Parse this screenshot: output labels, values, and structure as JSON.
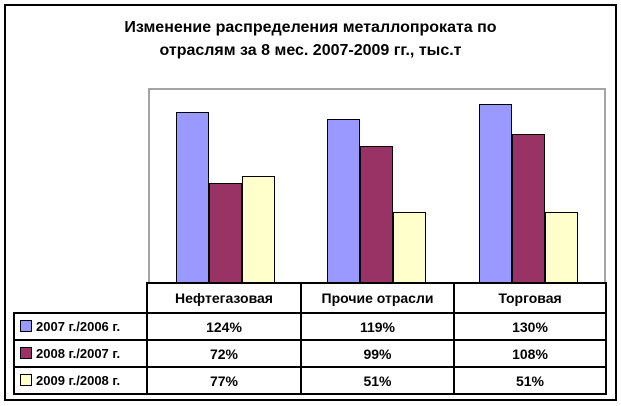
{
  "window": {
    "background": "#ffffff",
    "frame_border_color": "#000000"
  },
  "chart_data": {
    "type": "bar",
    "title": "Изменение распределения металлопроката по отраслям за 8 мес. 2007-2009 гг., тыс.т",
    "title_lines": [
      "Изменение распределения металлопроката по",
      "отраслям за 8 мес. 2007-2009 гг., тыс.т"
    ],
    "categories": [
      "Нефтегазовая",
      "Прочие отрасли",
      "Торговая"
    ],
    "series": [
      {
        "name": "2007 г./2006 г.",
        "color": "#9999FF",
        "values": [
          124,
          119,
          130
        ]
      },
      {
        "name": "2008 г./2007 г.",
        "color": "#993366",
        "values": [
          72,
          99,
          108
        ]
      },
      {
        "name": "2009 г./2008 г.",
        "color": "#FFFFCC",
        "values": [
          77,
          51,
          51
        ]
      }
    ],
    "table_values": [
      [
        "124%",
        "119%",
        "130%"
      ],
      [
        "72%",
        "99%",
        "108%"
      ],
      [
        "77%",
        "51%",
        "51%"
      ]
    ],
    "value_format": "percent",
    "ylim": [
      0,
      140
    ],
    "grid": false,
    "legend_position": "left-of-data-table",
    "plot_border_color": "#a4a4a4",
    "bar_border_color": "#000000",
    "xlabel": "",
    "ylabel": ""
  }
}
